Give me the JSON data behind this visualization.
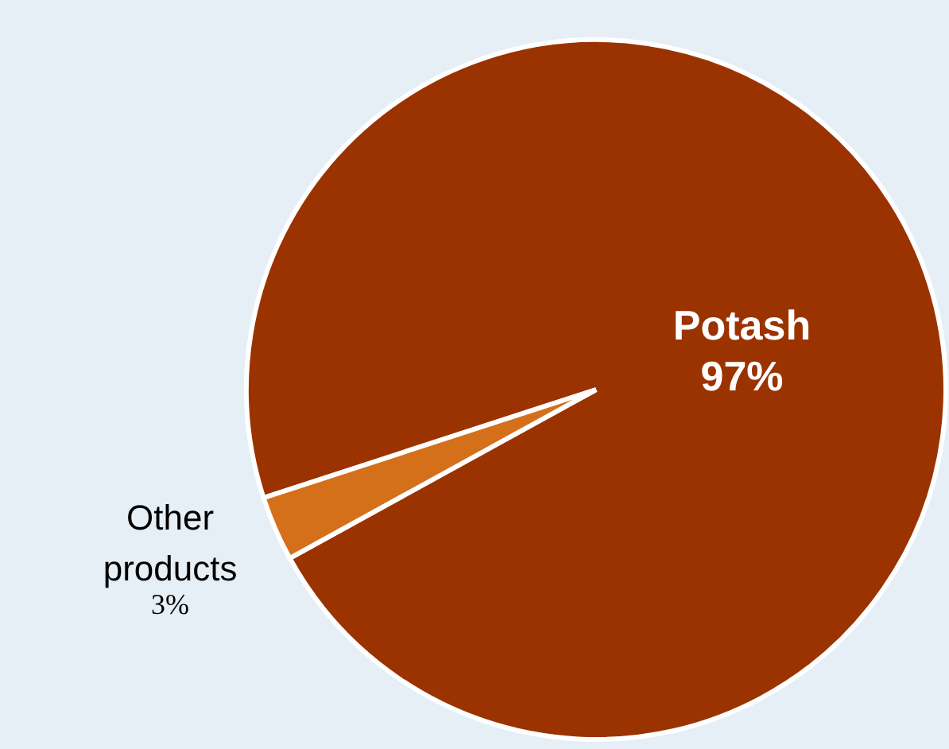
{
  "chart_data": {
    "type": "pie",
    "categories": [
      "Potash",
      "Other products"
    ],
    "values": [
      97,
      3
    ],
    "colors": [
      "#9b3300",
      "#d4701a"
    ],
    "value_labels": [
      "97%",
      "3%"
    ]
  }
}
